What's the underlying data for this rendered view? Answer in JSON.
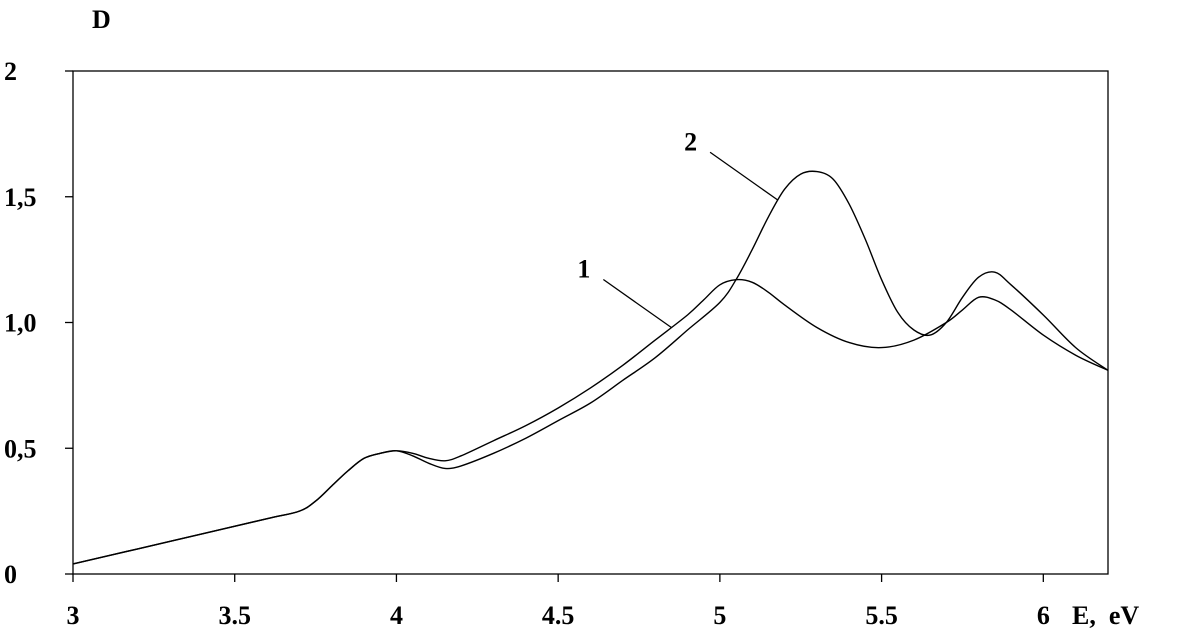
{
  "chart_data": {
    "type": "line",
    "xlabel": "E,  eV",
    "ylabel": "D",
    "xlim": [
      3,
      6.2
    ],
    "ylim": [
      0,
      2
    ],
    "x_ticks": [
      {
        "value": 3,
        "label": "3"
      },
      {
        "value": 3.5,
        "label": "3.5"
      },
      {
        "value": 4,
        "label": "4"
      },
      {
        "value": 4.5,
        "label": "4.5"
      },
      {
        "value": 5,
        "label": "5"
      },
      {
        "value": 5.5,
        "label": "5.5"
      },
      {
        "value": 6,
        "label": "6"
      }
    ],
    "y_ticks": [
      {
        "value": 0,
        "label": "0"
      },
      {
        "value": 0.5,
        "label": "0,5"
      },
      {
        "value": 1.0,
        "label": "1,0"
      },
      {
        "value": 1.5,
        "label": "1,5"
      },
      {
        "value": 2.0,
        "label": "2"
      }
    ],
    "grid": false,
    "series": [
      {
        "name": "1",
        "color": "#000000",
        "x": [
          3.0,
          3.2,
          3.4,
          3.6,
          3.7,
          3.75,
          3.8,
          3.85,
          3.9,
          3.95,
          4.0,
          4.05,
          4.1,
          4.15,
          4.2,
          4.3,
          4.4,
          4.5,
          4.6,
          4.7,
          4.8,
          4.9,
          4.95,
          5.0,
          5.05,
          5.1,
          5.15,
          5.2,
          5.3,
          5.4,
          5.5,
          5.6,
          5.7,
          5.75,
          5.8,
          5.85,
          5.9,
          6.0,
          6.1,
          6.2
        ],
        "y": [
          0.04,
          0.1,
          0.16,
          0.22,
          0.25,
          0.29,
          0.35,
          0.41,
          0.46,
          0.48,
          0.49,
          0.48,
          0.46,
          0.45,
          0.47,
          0.53,
          0.59,
          0.66,
          0.74,
          0.83,
          0.93,
          1.03,
          1.09,
          1.15,
          1.17,
          1.16,
          1.12,
          1.07,
          0.98,
          0.92,
          0.9,
          0.93,
          1.0,
          1.05,
          1.1,
          1.09,
          1.05,
          0.95,
          0.87,
          0.81
        ]
      },
      {
        "name": "2",
        "color": "#000000",
        "x": [
          3.0,
          3.2,
          3.4,
          3.6,
          3.7,
          3.75,
          3.8,
          3.85,
          3.9,
          3.95,
          4.0,
          4.05,
          4.1,
          4.15,
          4.2,
          4.3,
          4.4,
          4.5,
          4.6,
          4.7,
          4.8,
          4.9,
          5.0,
          5.05,
          5.1,
          5.15,
          5.2,
          5.25,
          5.3,
          5.35,
          5.4,
          5.45,
          5.5,
          5.55,
          5.6,
          5.65,
          5.7,
          5.75,
          5.8,
          5.85,
          5.9,
          6.0,
          6.1,
          6.2
        ],
        "y": [
          0.04,
          0.1,
          0.16,
          0.22,
          0.25,
          0.29,
          0.35,
          0.41,
          0.46,
          0.48,
          0.49,
          0.47,
          0.44,
          0.42,
          0.43,
          0.48,
          0.54,
          0.61,
          0.68,
          0.77,
          0.86,
          0.97,
          1.08,
          1.17,
          1.29,
          1.42,
          1.53,
          1.59,
          1.6,
          1.57,
          1.47,
          1.33,
          1.17,
          1.04,
          0.97,
          0.95,
          1.0,
          1.1,
          1.18,
          1.2,
          1.15,
          1.03,
          0.9,
          0.81
        ]
      }
    ],
    "annotations": [
      {
        "text": "1",
        "target_series": "1",
        "at_x": 4.85
      },
      {
        "text": "2",
        "target_series": "2",
        "at_x": 5.18
      }
    ]
  }
}
